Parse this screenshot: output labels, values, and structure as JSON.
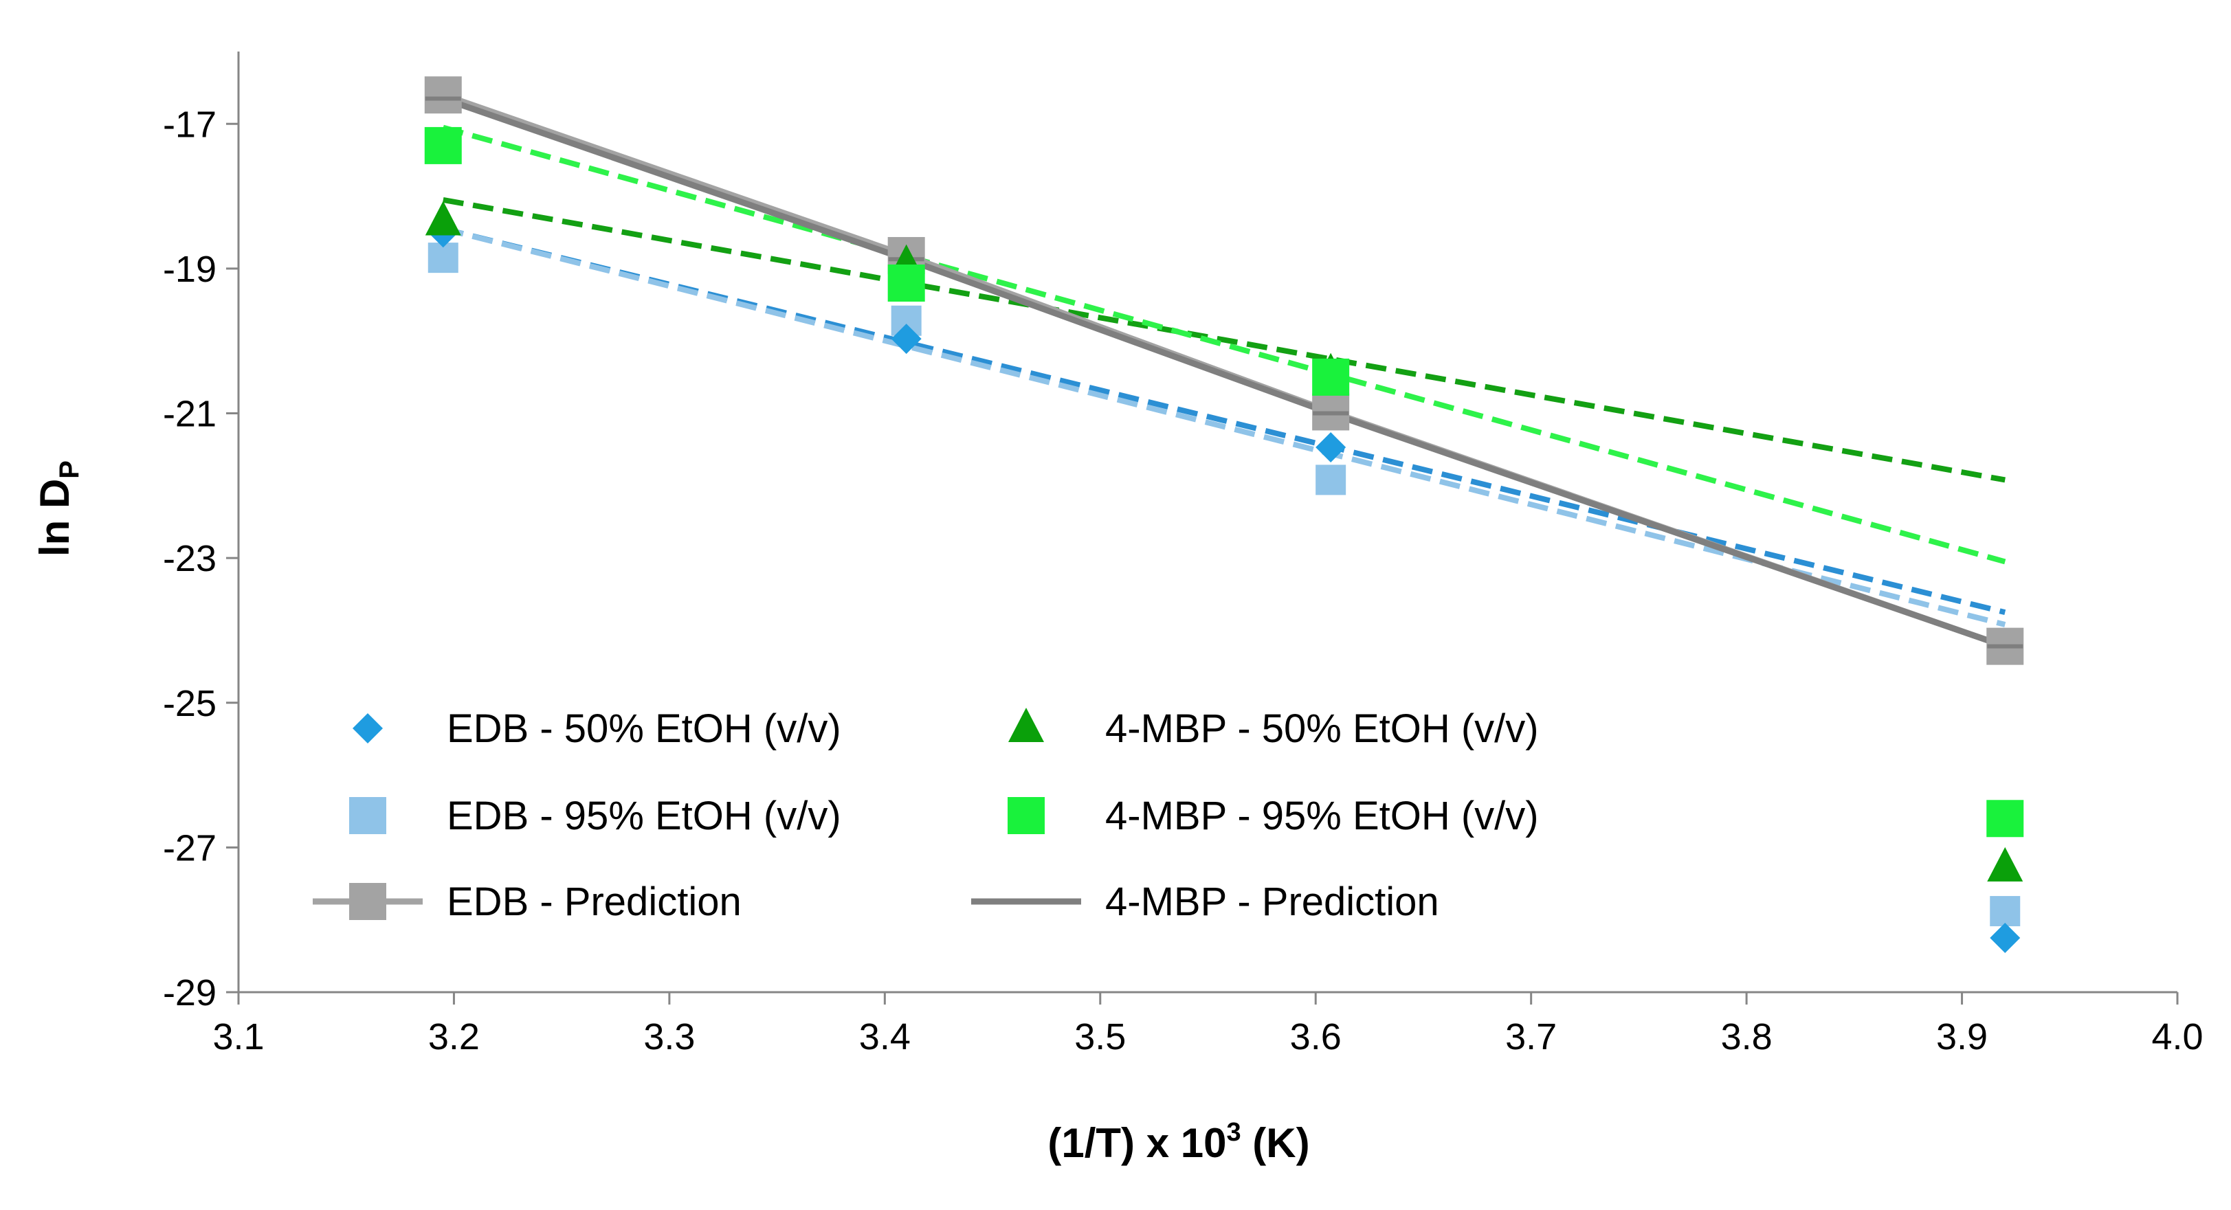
{
  "chart_data": {
    "type": "scatter",
    "title": "",
    "xlabel": {
      "main": "(1/T) x 10",
      "sup": "3",
      "suffix": " (K)"
    },
    "ylabel": {
      "main": "ln D",
      "sub": "P"
    },
    "xlim": [
      3.1,
      4.0
    ],
    "ylim": [
      -29,
      -16
    ],
    "xticks": [
      "3.1",
      "3.2",
      "3.3",
      "3.4",
      "3.5",
      "3.6",
      "3.7",
      "3.8",
      "3.9",
      "4.0"
    ],
    "yticks": [
      "-17",
      "-19",
      "-21",
      "-23",
      "-25",
      "-27",
      "-29"
    ],
    "series": [
      {
        "name": "EDB - 50% EtOH (v/v)",
        "marker": "diamond",
        "color": "#1f9ce0",
        "x": [
          3.195,
          3.41,
          3.607,
          3.92
        ],
        "y": [
          -18.5,
          -19.97,
          -21.47,
          -28.25
        ],
        "trendline": {
          "style": "dashed",
          "color": "#2b8fd4",
          "x": [
            3.195,
            3.92
          ],
          "y": [
            -18.45,
            -23.75
          ]
        }
      },
      {
        "name": "EDB - 95% EtOH (v/v)",
        "marker": "square",
        "color": "#8fc3e8",
        "x": [
          3.195,
          3.41,
          3.607,
          3.92
        ],
        "y": [
          -18.85,
          -19.72,
          -21.92,
          -27.88
        ],
        "trendline": {
          "style": "dashed",
          "color": "#8fc3e8",
          "x": [
            3.195,
            3.92
          ],
          "y": [
            -18.45,
            -23.92
          ]
        }
      },
      {
        "name": "4-MBP - 50% EtOH (v/v)",
        "marker": "triangle",
        "color": "#0aa00a",
        "x": [
          3.195,
          3.41,
          3.607,
          3.92
        ],
        "y": [
          -18.35,
          -18.95,
          -20.45,
          -27.28
        ],
        "trendline": {
          "style": "dashed",
          "color": "#13a013",
          "x": [
            3.195,
            3.92
          ],
          "y": [
            -18.05,
            -21.92
          ]
        }
      },
      {
        "name": "4-MBP - 95% EtOH (v/v)",
        "marker": "square",
        "color": "#19f23c",
        "x": [
          3.195,
          3.41,
          3.607,
          3.92
        ],
        "y": [
          -17.3,
          -19.2,
          -20.5,
          -26.6
        ],
        "trendline": {
          "style": "dashed",
          "color": "#2ef24a",
          "x": [
            3.195,
            3.92
          ],
          "y": [
            -17.05,
            -23.05
          ]
        }
      },
      {
        "name": "EDB - Prediction",
        "marker": "square",
        "line": "solid",
        "color": "#a3a3a3",
        "x": [
          3.195,
          3.41,
          3.607,
          3.92
        ],
        "y": [
          -16.6,
          -18.82,
          -20.98,
          -24.22
        ]
      },
      {
        "name": "4-MBP - Prediction",
        "marker": "dash",
        "line": "solid",
        "color": "#7f7f7f",
        "x": [
          3.195,
          3.41,
          3.607,
          3.92
        ],
        "y": [
          -16.65,
          -18.87,
          -21.0,
          -24.22
        ]
      }
    ],
    "legend": {
      "placement": "lower-left",
      "columns": 2,
      "entries": [
        "EDB - 50% EtOH (v/v)",
        "4-MBP - 50% EtOH (v/v)",
        "EDB - 95% EtOH (v/v)",
        "4-MBP - 95% EtOH (v/v)",
        "EDB - Prediction",
        "4-MBP - Prediction"
      ]
    }
  }
}
